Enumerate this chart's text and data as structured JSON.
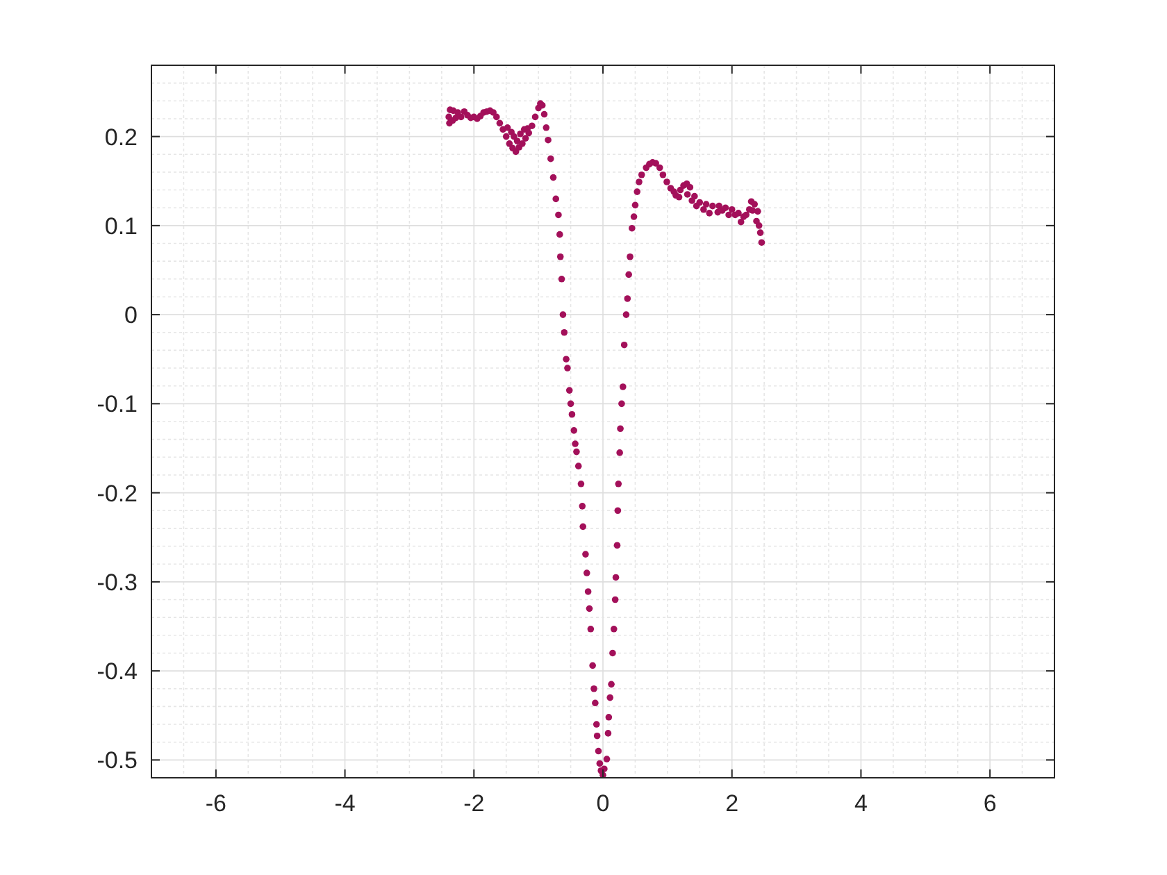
{
  "chart_data": {
    "type": "scatter",
    "color": "#a3105a",
    "marker": "circle",
    "grid": true,
    "xlim": [
      -7,
      7
    ],
    "ylim": [
      -0.52,
      0.28
    ],
    "xticks": [
      -6,
      -4,
      -2,
      0,
      2,
      4,
      6,
      {
        "value": -6.5,
        "label": null
      },
      {
        "value": -5.5,
        "label": null
      },
      {
        "value": -5,
        "label": null
      },
      {
        "value": -4.5,
        "label": null
      },
      {
        "value": -3.5,
        "label": null
      },
      {
        "value": -3,
        "label": null
      },
      {
        "value": -2.5,
        "label": null
      },
      {
        "value": -1.5,
        "label": null
      },
      {
        "value": -1,
        "label": null
      },
      {
        "value": -0.5,
        "label": null
      },
      {
        "value": 0.5,
        "label": null
      },
      {
        "value": 1,
        "label": null
      },
      {
        "value": 1.5,
        "label": null
      },
      {
        "value": 2.5,
        "label": null
      },
      {
        "value": 3,
        "label": null
      },
      {
        "value": 3.5,
        "label": null
      },
      {
        "value": 4.5,
        "label": null
      },
      {
        "value": 5,
        "label": null
      },
      {
        "value": 5.5,
        "label": null
      },
      {
        "value": 6.5,
        "label": null
      }
    ],
    "yticks": [
      -0.5,
      -0.4,
      -0.3,
      -0.2,
      -0.1,
      0,
      0.1,
      0.2,
      {
        "value": -0.48,
        "label": null
      },
      {
        "value": -0.46,
        "label": null
      },
      {
        "value": -0.44,
        "label": null
      },
      {
        "value": -0.42,
        "label": null
      },
      {
        "value": -0.38,
        "label": null
      },
      {
        "value": -0.36,
        "label": null
      },
      {
        "value": -0.34,
        "label": null
      },
      {
        "value": -0.32,
        "label": null
      },
      {
        "value": -0.28,
        "label": null
      },
      {
        "value": -0.26,
        "label": null
      },
      {
        "value": -0.24,
        "label": null
      },
      {
        "value": -0.22,
        "label": null
      },
      {
        "value": -0.18,
        "label": null
      },
      {
        "value": -0.16,
        "label": null
      },
      {
        "value": -0.14,
        "label": null
      },
      {
        "value": -0.12,
        "label": null
      },
      {
        "value": -0.08,
        "label": null
      },
      {
        "value": -0.06,
        "label": null
      },
      {
        "value": -0.04,
        "label": null
      },
      {
        "value": -0.02,
        "label": null
      },
      {
        "value": 0.02,
        "label": null
      },
      {
        "value": 0.04,
        "label": null
      },
      {
        "value": 0.06,
        "label": null
      },
      {
        "value": 0.08,
        "label": null
      },
      {
        "value": 0.12,
        "label": null
      },
      {
        "value": 0.14,
        "label": null
      },
      {
        "value": 0.16,
        "label": null
      },
      {
        "value": 0.18,
        "label": null
      },
      {
        "value": 0.22,
        "label": null
      },
      {
        "value": 0.24,
        "label": null
      },
      {
        "value": 0.26,
        "label": null
      }
    ],
    "x": [
      -2.39,
      -2.38,
      -2.37,
      -2.33,
      -2.32,
      -2.28,
      -2.25,
      -2.2,
      -2.15,
      -2.1,
      -2.05,
      -2.0,
      -1.95,
      -1.9,
      -1.85,
      -1.8,
      -1.75,
      -1.7,
      -1.65,
      -1.6,
      -1.55,
      -1.5,
      -1.48,
      -1.45,
      -1.42,
      -1.4,
      -1.38,
      -1.35,
      -1.33,
      -1.3,
      -1.28,
      -1.25,
      -1.22,
      -1.2,
      -1.17,
      -1.15,
      -1.1,
      -1.05,
      -1.0,
      -0.97,
      -0.94,
      -0.91,
      -0.88,
      -0.85,
      -0.81,
      -0.77,
      -0.73,
      -0.69,
      -0.67,
      -0.66,
      -0.64,
      -0.62,
      -0.6,
      -0.57,
      -0.55,
      -0.52,
      -0.5,
      -0.48,
      -0.45,
      -0.43,
      -0.41,
      -0.38,
      -0.34,
      -0.32,
      -0.31,
      -0.27,
      -0.25,
      -0.23,
      -0.21,
      -0.19,
      -0.16,
      -0.14,
      -0.12,
      -0.1,
      -0.09,
      -0.07,
      -0.05,
      -0.03,
      0.0,
      0.02,
      0.06,
      0.08,
      0.09,
      0.11,
      0.13,
      0.15,
      0.17,
      0.19,
      0.2,
      0.22,
      0.23,
      0.24,
      0.26,
      0.27,
      0.29,
      0.31,
      0.33,
      0.36,
      0.38,
      0.4,
      0.42,
      0.45,
      0.48,
      0.5,
      0.53,
      0.56,
      0.6,
      0.67,
      0.72,
      0.77,
      0.82,
      0.88,
      0.93,
      0.99,
      1.05,
      1.1,
      1.13,
      1.18,
      1.2,
      1.25,
      1.3,
      1.31,
      1.35,
      1.38,
      1.42,
      1.45,
      1.5,
      1.56,
      1.6,
      1.65,
      1.7,
      1.78,
      1.8,
      1.85,
      1.9,
      1.95,
      2.0,
      2.05,
      2.1,
      2.14,
      2.18,
      2.22,
      2.27,
      2.3,
      2.32,
      2.35,
      2.38,
      2.4,
      2.42,
      2.44,
      2.46
    ],
    "values": [
      0.222,
      0.215,
      0.23,
      0.218,
      0.229,
      0.221,
      0.227,
      0.222,
      0.228,
      0.224,
      0.221,
      0.222,
      0.22,
      0.223,
      0.227,
      0.228,
      0.229,
      0.227,
      0.222,
      0.215,
      0.208,
      0.2,
      0.21,
      0.192,
      0.205,
      0.187,
      0.2,
      0.183,
      0.195,
      0.188,
      0.203,
      0.192,
      0.208,
      0.198,
      0.209,
      0.204,
      0.212,
      0.222,
      0.232,
      0.237,
      0.235,
      0.225,
      0.21,
      0.196,
      0.175,
      0.154,
      0.13,
      0.112,
      0.09,
      0.065,
      0.04,
      0.0,
      -0.02,
      -0.05,
      -0.06,
      -0.085,
      -0.1,
      -0.112,
      -0.13,
      -0.145,
      -0.154,
      -0.17,
      -0.19,
      -0.215,
      -0.238,
      -0.269,
      -0.29,
      -0.311,
      -0.33,
      -0.353,
      -0.394,
      -0.42,
      -0.436,
      -0.46,
      -0.473,
      -0.49,
      -0.504,
      -0.512,
      -0.517,
      -0.51,
      -0.499,
      -0.47,
      -0.452,
      -0.43,
      -0.415,
      -0.38,
      -0.353,
      -0.32,
      -0.295,
      -0.259,
      -0.22,
      -0.19,
      -0.155,
      -0.128,
      -0.1,
      -0.081,
      -0.034,
      0.0,
      0.018,
      0.045,
      0.065,
      0.097,
      0.11,
      0.123,
      0.138,
      0.149,
      0.157,
      0.165,
      0.169,
      0.171,
      0.17,
      0.165,
      0.157,
      0.149,
      0.142,
      0.138,
      0.134,
      0.132,
      0.14,
      0.145,
      0.147,
      0.135,
      0.143,
      0.128,
      0.133,
      0.122,
      0.126,
      0.118,
      0.124,
      0.114,
      0.122,
      0.115,
      0.122,
      0.117,
      0.12,
      0.112,
      0.118,
      0.112,
      0.114,
      0.104,
      0.11,
      0.112,
      0.118,
      0.127,
      0.117,
      0.124,
      0.105,
      0.116,
      0.1,
      0.092,
      0.081
    ]
  }
}
